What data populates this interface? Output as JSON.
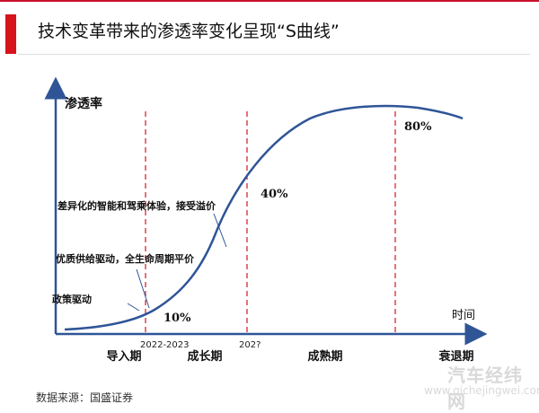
{
  "header": {
    "title": "技术变革带来的渗透率变化呈现“S曲线”"
  },
  "axes": {
    "y_label": "渗透率",
    "x_label": "时间"
  },
  "boundaries": [
    {
      "label": "2022-2023"
    },
    {
      "label": "202?"
    },
    {
      "label": ""
    }
  ],
  "phases": [
    {
      "label": "导入期"
    },
    {
      "label": "成长期"
    },
    {
      "label": "成熟期"
    },
    {
      "label": "衰退期"
    }
  ],
  "penetration_labels": [
    {
      "label": "10%"
    },
    {
      "label": "40%"
    },
    {
      "label": "80%"
    }
  ],
  "drivers": [
    {
      "label": "政策驱动"
    },
    {
      "label": "优质供给驱动，全生命周期平价"
    },
    {
      "label": "差异化的智能和驾乘体验，接受溢价"
    }
  ],
  "footer": {
    "source": "数据来源：国盛证券"
  },
  "watermark": {
    "brand": "汽车经纬网",
    "url": "www.qichejingwei.com"
  },
  "colors": {
    "accent": "#d7141c",
    "curve": "#2f5597",
    "divider": "#d9262c"
  }
}
